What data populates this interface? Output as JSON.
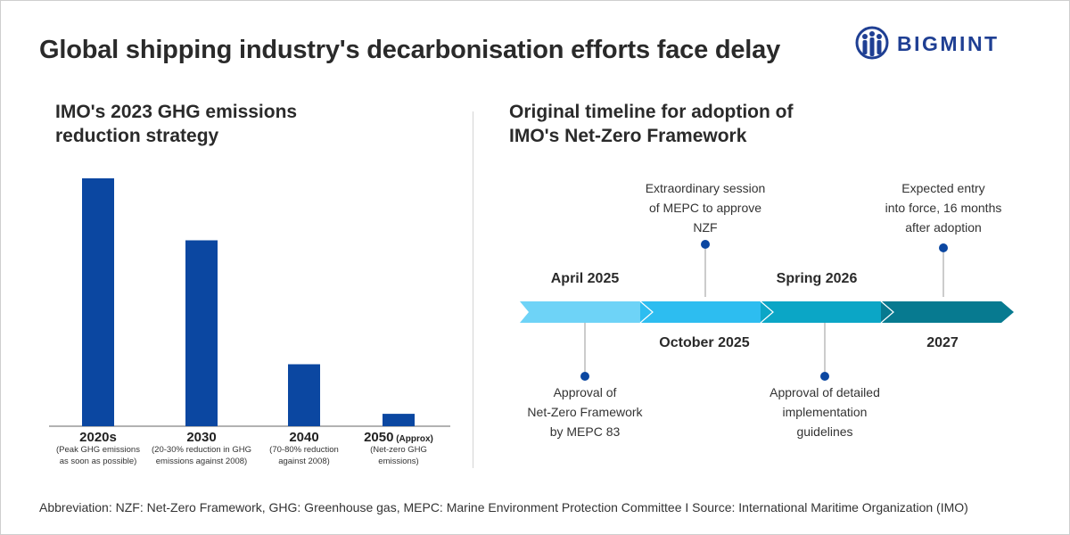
{
  "header": {
    "title": "Global shipping industry's decarbonisation efforts face delay",
    "logo_text": "BIGMINT",
    "logo_icon": "three-people-globe-logo",
    "brand_color": "#1f3f93"
  },
  "left_panel": {
    "title": "IMO's 2023 GHG emissions reduction strategy"
  },
  "right_panel": {
    "title": "Original timeline for adoption of IMO's Net-Zero Framework"
  },
  "chart_data": [
    {
      "type": "bar",
      "title": "IMO's 2023 GHG emissions reduction strategy",
      "categories": [
        "2020s",
        "2030",
        "2040",
        "2050"
      ],
      "category_suffix": [
        "",
        "",
        "",
        "(Approx)"
      ],
      "category_notes": [
        [
          "(Peak GHG emissions",
          "as soon as possible)"
        ],
        [
          "(20-30% reduction in GHG",
          "emissions against 2008)"
        ],
        [
          "(70-80% reduction",
          "against 2008)"
        ],
        [
          "(Net-zero GHG",
          "emissions)"
        ]
      ],
      "values": [
        100,
        75,
        25,
        5
      ],
      "ylim": [
        0,
        100
      ],
      "xlabel": "",
      "ylabel": "",
      "grid": false,
      "bar_color": "#0b47a1"
    },
    {
      "type": "timeline",
      "title": "Original timeline for adoption of IMO's Net-Zero Framework",
      "segments": [
        {
          "label": "April 2025",
          "color": "#6ed3f7"
        },
        {
          "label": "October 2025",
          "color": "#2dbdf0"
        },
        {
          "label": "Spring 2026",
          "color": "#0ba6c6"
        },
        {
          "label": "2027",
          "color": "#077a90"
        }
      ],
      "events": [
        {
          "lines": [
            "Approval of",
            "Net-Zero Framework",
            "by MEPC 83"
          ],
          "side": "below",
          "segment": 0
        },
        {
          "lines": [
            "Extraordinary session",
            "of MEPC to approve",
            "NZF"
          ],
          "side": "above",
          "segment": 1
        },
        {
          "lines": [
            "Approval of detailed",
            "implementation",
            "guidelines"
          ],
          "side": "below",
          "segment": 2
        },
        {
          "lines": [
            "Expected entry",
            "into force, 16 months",
            "after adoption"
          ],
          "side": "above",
          "segment": 3
        }
      ],
      "marker_color": "#0b47a1"
    }
  ],
  "footer": {
    "text": "Abbreviation: NZF: Net-Zero Framework, GHG: Greenhouse gas, MEPC: Marine Environment  Protection Committee  I  Source: International Maritime Organization (IMO)"
  }
}
